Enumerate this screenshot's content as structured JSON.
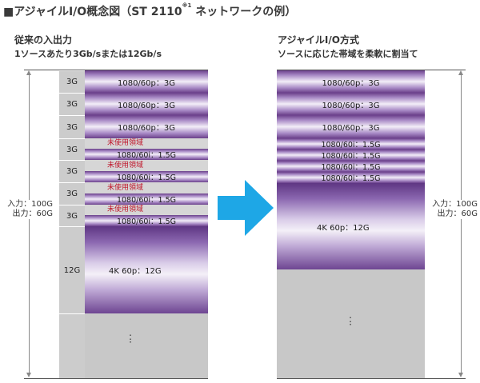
{
  "title": {
    "main": "■アジャイルI/O概念図（ST 2110",
    "sup": "※1",
    "tail": " ネットワークの例）"
  },
  "left": {
    "heading": "従来の入出力",
    "subheading": "1ソースあたり3Gb/sまたは12Gb/s",
    "io_in": "入力：100G",
    "io_out": "出力：60G",
    "slots": [
      {
        "g": "3G",
        "band": "1080/60p：3G"
      },
      {
        "g": "3G",
        "band": "1080/60p：3G"
      },
      {
        "g": "3G",
        "band": "1080/60p：3G"
      },
      {
        "g": "3G",
        "unused": "未使用領域",
        "band": "1080/60i：1.5G"
      },
      {
        "g": "3G",
        "unused": "未使用領域",
        "band": "1080/60i：1.5G"
      },
      {
        "g": "3G",
        "unused": "未使用領域",
        "band": "1080/60i：1.5G"
      },
      {
        "g": "3G",
        "unused": "未使用領域",
        "band": "1080/60i：1.5G"
      },
      {
        "g": "12G",
        "band": "4K 60p：12G"
      }
    ],
    "dots": ":"
  },
  "right": {
    "heading": "アジャイルI/O方式",
    "subheading": "ソースに応じた帯域を柔軟に割当て",
    "io_in": "入力：100G",
    "io_out": "出力：60G",
    "bands": [
      "1080/60p：3G",
      "1080/60p：3G",
      "1080/60p：3G",
      "1080/60i：1.5G",
      "1080/60i：1.5G",
      "1080/60i：1.5G",
      "1080/60i：1.5G",
      "4K 60p：12G"
    ],
    "dots": ":"
  },
  "colors": {
    "arrow": "#1ea7e6",
    "unused_text": "#c0162a",
    "band_dark": "#6a3f8a",
    "grey": "#c8c8c8"
  }
}
